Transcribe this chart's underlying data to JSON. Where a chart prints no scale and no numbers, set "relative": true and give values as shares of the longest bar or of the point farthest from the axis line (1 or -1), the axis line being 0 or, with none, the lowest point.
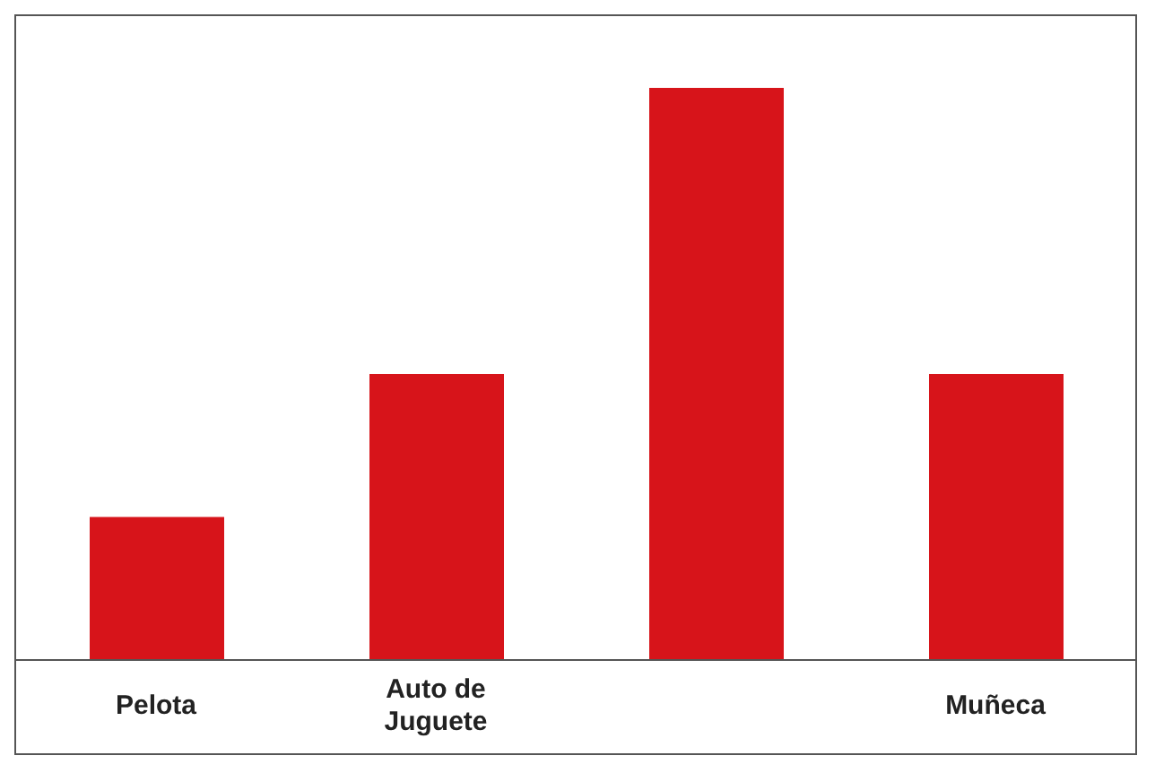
{
  "chart_data": {
    "type": "bar",
    "relative": true,
    "categories": [
      "Pelota",
      "Auto de Juguete",
      null,
      "Muñeca"
    ],
    "values": [
      0.25,
      0.5,
      1,
      0.5
    ],
    "color": "#d7141a"
  }
}
